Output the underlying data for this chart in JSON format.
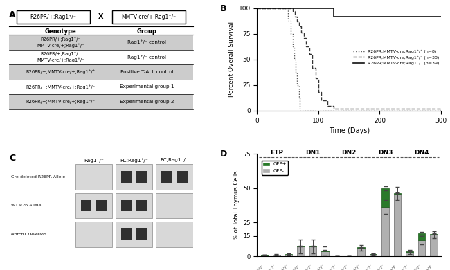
{
  "panel_A": {
    "cross_left": "R26PR/+;Rag1⁺/⁻",
    "cross_right": "MMTV-cre/+;Rag1⁺/⁻",
    "table_headers": [
      "Genotype",
      "Group"
    ],
    "rows": [
      {
        "genotype": "R26PR/+;Rag1⁺/⁻\nMMTV-cre/+;Rag1⁺/⁻",
        "group": "Rag1⁺/⁻ control",
        "shaded": true
      },
      {
        "genotype": "R26PR/+;Rag1⁺/⁻\nMMTV-cre/+;Rag1⁺/⁻",
        "group": "Rag1⁺/⁻ control",
        "shaded": false
      },
      {
        "genotype": "R26PR/+;MMTV-cre/+;Rag1⁺/⁺",
        "group": "Positive T-ALL control",
        "shaded": true
      },
      {
        "genotype": "R26PR/+;MMTV-cre/+;Rag1⁺/⁻",
        "group": "Experimental group 1",
        "shaded": false
      },
      {
        "genotype": "R26PR/+;MMTV-cre/+;Rag1⁻/⁻",
        "group": "Experimental group 2",
        "shaded": true
      }
    ]
  },
  "panel_B": {
    "ylabel": "Percent Overall Survival",
    "xlabel": "Time (Days)",
    "xlim": [
      0,
      300
    ],
    "ylim": [
      0,
      100
    ],
    "xticks": [
      0,
      100,
      200,
      300
    ],
    "yticks": [
      0,
      25,
      50,
      75,
      100
    ],
    "curves": [
      {
        "label": "R26PR;MMTV-cre;Rag1⁺/⁺ (n=8)",
        "style": "dotted",
        "color": "#555555",
        "x": [
          0,
          48,
          50,
          55,
          58,
          60,
          63,
          65,
          68,
          70,
          125,
          300
        ],
        "y": [
          100,
          100,
          87.5,
          75,
          62.5,
          50,
          37.5,
          25,
          12.5,
          0,
          0,
          0
        ]
      },
      {
        "label": "R26PR;MMTV-cre;Rag1⁺/⁻ (n=38)",
        "style": "dashed",
        "color": "#333333",
        "x": [
          0,
          55,
          58,
          62,
          65,
          68,
          72,
          76,
          80,
          85,
          90,
          95,
          100,
          105,
          115,
          125,
          300
        ],
        "y": [
          100,
          100,
          97,
          92,
          87,
          82,
          76,
          71,
          63,
          55,
          42,
          32,
          18,
          10,
          5,
          2,
          0
        ]
      },
      {
        "label": "R26PR;MMTV-cre;Rag1⁻/⁻ (n=39)",
        "style": "solid",
        "color": "#111111",
        "x": [
          0,
          100,
          125,
          130,
          300
        ],
        "y": [
          100,
          100,
          92,
          92,
          92
        ]
      }
    ]
  },
  "panel_C": {
    "label": "C",
    "groups": [
      "Rag1⁺/⁻",
      "RC;Rag1⁺/⁻",
      "RC;Rag1⁻/⁻"
    ],
    "row_labels": [
      "Cre-deleted R26PR Allele",
      "WT R26 Allele",
      "Notch1 Deletion"
    ],
    "band_pattern": [
      [
        false,
        true,
        true
      ],
      [
        true,
        true,
        false
      ],
      [
        false,
        true,
        false
      ]
    ]
  },
  "panel_D": {
    "label": "D",
    "ylabel": "% of Total Thymus Cells",
    "groups": [
      "ETP",
      "DN1",
      "DN2",
      "DN3",
      "DN4"
    ],
    "gfp_pos": [
      0.05,
      0.05,
      0.1,
      0.1,
      0.1,
      0.5,
      0.02,
      0.02,
      0.1,
      0.2,
      14.0,
      0.5,
      0.5,
      5.0,
      0.5
    ],
    "gfp_neg": [
      1.0,
      1.4,
      1.5,
      7.5,
      7.5,
      4.0,
      0.05,
      0.05,
      6.5,
      1.5,
      36.0,
      46.0,
      3.5,
      12.0,
      16.0
    ],
    "gfp_pos_err": [
      0.03,
      0.03,
      0.08,
      0.08,
      0.08,
      0.4,
      0.01,
      0.01,
      0.08,
      0.15,
      1.5,
      0.4,
      0.3,
      1.0,
      0.3
    ],
    "gfp_neg_err": [
      0.4,
      0.5,
      0.6,
      5.0,
      5.0,
      3.5,
      0.03,
      0.03,
      2.0,
      0.8,
      5.0,
      5.0,
      1.5,
      3.0,
      2.5
    ],
    "ylim": [
      0,
      75
    ],
    "yticks": [
      0,
      15,
      25,
      50,
      75
    ],
    "bar_width": 0.6,
    "gfp_pos_color": "#2a7a2a",
    "gfp_neg_color": "#b0b0b0"
  }
}
